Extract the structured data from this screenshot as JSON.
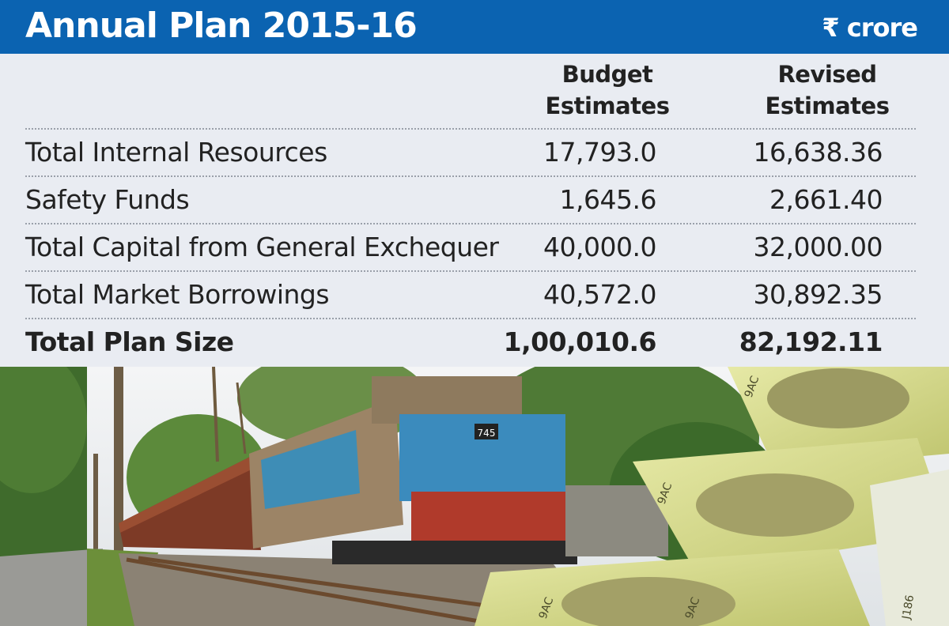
{
  "header": {
    "title": "Annual Plan 2015-16",
    "unit": "₹ crore"
  },
  "chart_data": {
    "type": "table",
    "title": "Annual Plan 2015-16",
    "unit": "₹ crore",
    "columns": [
      "Budget Estimates",
      "Revised Estimates"
    ],
    "column_lines": [
      [
        "Budget",
        "Estimates"
      ],
      [
        "Revised",
        "Estimates"
      ]
    ],
    "rows": [
      {
        "label": "Total Internal Resources",
        "budget": "17,793.0",
        "revised": "16,638.36"
      },
      {
        "label": "Safety Funds",
        "budget": "1,645.6",
        "revised": "2,661.40"
      },
      {
        "label": "Total Capital from General Exchequer",
        "budget": "40,000.0",
        "revised": "32,000.00"
      },
      {
        "label": "Total Market Borrowings",
        "budget": "40,572.0",
        "revised": "30,892.35"
      },
      {
        "label": "Total Plan Size",
        "budget": "1,00,010.6",
        "revised": "82,192.11"
      }
    ]
  },
  "photo": {
    "currency_note_texts": [
      "9AC",
      "9AC",
      "9AC",
      "9AC",
      "J186"
    ],
    "locomotive_number": "745"
  },
  "colors": {
    "header_bg": "#0b63b1",
    "table_bg": "#e9ecf2",
    "text": "#222222"
  }
}
